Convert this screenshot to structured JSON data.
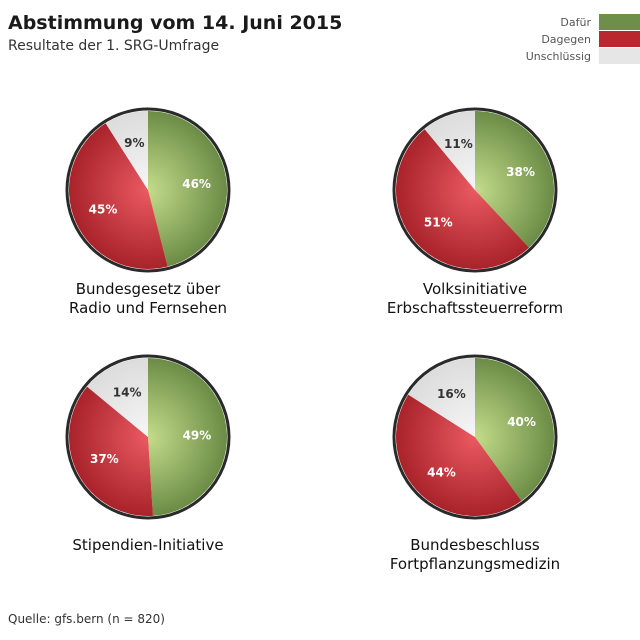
{
  "header": {
    "title": "Abstimmung vom 14. Juni 2015",
    "subtitle": "Resultate der 1. SRG-Umfrage"
  },
  "legend": [
    {
      "label": "Dafür",
      "color": "#6e8f49"
    },
    {
      "label": "Dagegen",
      "color": "#b9282f"
    },
    {
      "label": "Unschlüssig",
      "color": "#e6e6e6"
    }
  ],
  "footer": {
    "source": "Quelle: gfs.bern (n = 820)"
  },
  "chart_data": [
    {
      "type": "pie",
      "title": [
        "Bundesgesetz über",
        "Radio und Fernsehen"
      ],
      "categories": [
        "Dafür",
        "Dagegen",
        "Unschlüssig"
      ],
      "values": [
        46,
        45,
        9
      ],
      "labels": [
        "46%",
        "45%",
        "9%"
      ]
    },
    {
      "type": "pie",
      "title": [
        "Volksinitiative",
        "Erbschaftssteuerreform"
      ],
      "categories": [
        "Dafür",
        "Dagegen",
        "Unschlüssig"
      ],
      "values": [
        38,
        51,
        11
      ],
      "labels": [
        "38%",
        "51%",
        "11%"
      ]
    },
    {
      "type": "pie",
      "title": [
        "Stipendien-Initiative"
      ],
      "categories": [
        "Dafür",
        "Dagegen",
        "Unschlüssig"
      ],
      "values": [
        49,
        37,
        14
      ],
      "labels": [
        "49%",
        "37%",
        "14%"
      ]
    },
    {
      "type": "pie",
      "title": [
        "Bundesbeschluss",
        "Fortpflanzungsmedizin"
      ],
      "categories": [
        "Dafür",
        "Dagegen",
        "Unschlüssig"
      ],
      "values": [
        40,
        44,
        16
      ],
      "labels": [
        "40%",
        "44%",
        "16%"
      ]
    }
  ]
}
